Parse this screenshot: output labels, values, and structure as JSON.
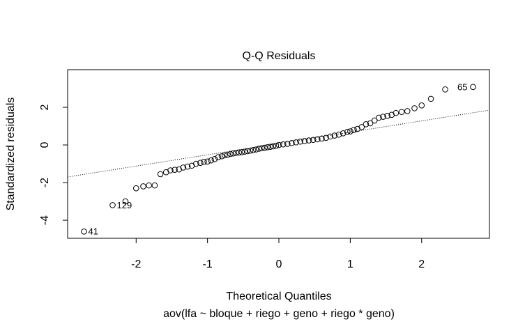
{
  "chart_data": {
    "type": "scatter",
    "title": "Q-Q Residuals",
    "x_label": "Theoretical Quantiles",
    "subtitle": "aov(lfa ~ bloque + riego + geno + riego * geno)",
    "y_label": "Standardized residuals",
    "xlim": [
      -2.96,
      2.95
    ],
    "ylim": [
      -4.96,
      4.0
    ],
    "xticks": [
      -2,
      -1,
      0,
      1,
      2
    ],
    "yticks": [
      -4,
      -2,
      0,
      2
    ],
    "x": [
      -2.73,
      -2.33,
      -2.15,
      -2.0,
      -1.9,
      -1.82,
      -1.74,
      -1.66,
      -1.58,
      -1.52,
      -1.46,
      -1.4,
      -1.34,
      -1.28,
      -1.22,
      -1.16,
      -1.1,
      -1.05,
      -1.0,
      -0.95,
      -0.9,
      -0.85,
      -0.8,
      -0.76,
      -0.72,
      -0.68,
      -0.64,
      -0.6,
      -0.56,
      -0.52,
      -0.48,
      -0.44,
      -0.4,
      -0.36,
      -0.32,
      -0.28,
      -0.24,
      -0.2,
      -0.16,
      -0.12,
      -0.08,
      -0.04,
      0,
      0.06,
      0.12,
      0.18,
      0.24,
      0.3,
      0.36,
      0.42,
      0.48,
      0.54,
      0.6,
      0.66,
      0.72,
      0.78,
      0.84,
      0.9,
      0.96,
      1.0,
      1.05,
      1.1,
      1.16,
      1.22,
      1.28,
      1.34,
      1.4,
      1.46,
      1.52,
      1.58,
      1.64,
      1.72,
      1.8,
      1.9,
      2.0,
      2.13,
      2.33,
      2.72
    ],
    "y": [
      -4.6,
      -3.2,
      -3.0,
      -2.3,
      -2.2,
      -2.15,
      -2.15,
      -1.55,
      -1.45,
      -1.35,
      -1.32,
      -1.3,
      -1.2,
      -1.15,
      -1.1,
      -1.0,
      -0.95,
      -0.9,
      -0.88,
      -0.82,
      -0.75,
      -0.65,
      -0.6,
      -0.55,
      -0.52,
      -0.48,
      -0.45,
      -0.42,
      -0.4,
      -0.38,
      -0.36,
      -0.33,
      -0.3,
      -0.27,
      -0.24,
      -0.2,
      -0.17,
      -0.15,
      -0.12,
      -0.1,
      -0.07,
      -0.04,
      0,
      0.03,
      0.06,
      0.1,
      0.14,
      0.18,
      0.21,
      0.24,
      0.27,
      0.3,
      0.34,
      0.38,
      0.45,
      0.5,
      0.55,
      0.62,
      0.7,
      0.72,
      0.8,
      0.85,
      0.95,
      1.1,
      1.15,
      1.3,
      1.45,
      1.5,
      1.55,
      1.6,
      1.7,
      1.75,
      1.8,
      1.95,
      2.1,
      2.45,
      2.95,
      3.08
    ],
    "labels": [
      "41",
      "129",
      null,
      null,
      null,
      null,
      null,
      null,
      null,
      null,
      null,
      null,
      null,
      null,
      null,
      null,
      null,
      null,
      null,
      null,
      null,
      null,
      null,
      null,
      null,
      null,
      null,
      null,
      null,
      null,
      null,
      null,
      null,
      null,
      null,
      null,
      null,
      null,
      null,
      null,
      null,
      null,
      null,
      null,
      null,
      null,
      null,
      null,
      null,
      null,
      null,
      null,
      null,
      null,
      null,
      null,
      null,
      null,
      null,
      null,
      null,
      null,
      null,
      null,
      null,
      null,
      null,
      null,
      null,
      null,
      null,
      null,
      null,
      null,
      null,
      null,
      null,
      "65"
    ],
    "qq_line": {
      "x": [
        -2.96,
        2.95
      ],
      "y": [
        -1.7,
        1.85
      ]
    }
  }
}
